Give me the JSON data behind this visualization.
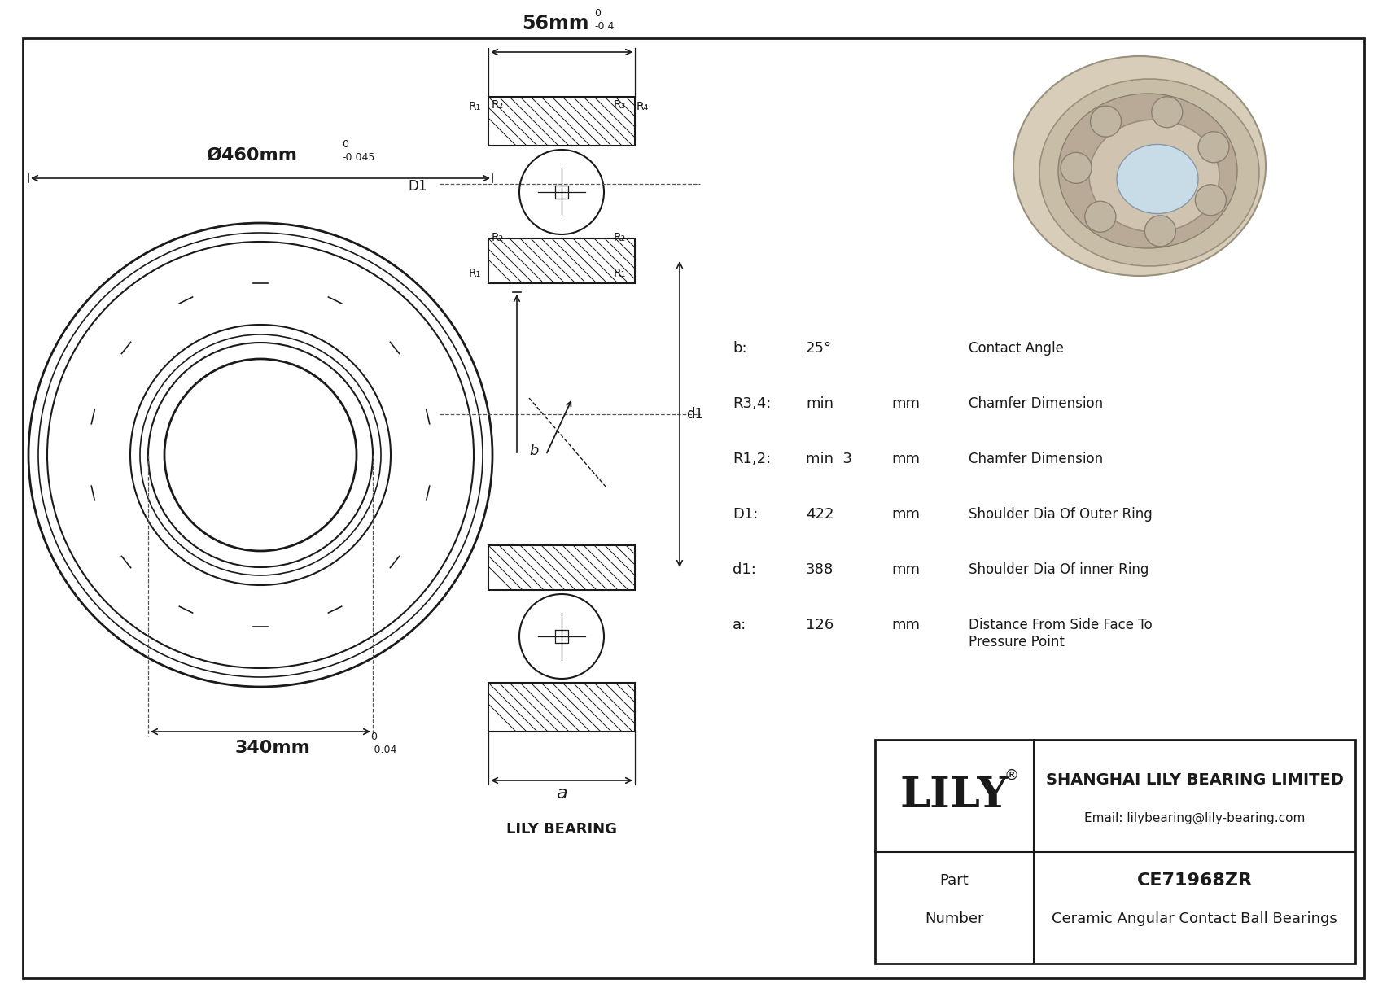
{
  "bg_color": "#ffffff",
  "line_color": "#1a1a1a",
  "dim_color": "#555555",
  "part_number": "CE71968ZR",
  "part_type": "Ceramic Angular Contact Ball Bearings",
  "company": "SHANGHAI LILY BEARING LIMITED",
  "email": "Email: lilybearing@lily-bearing.com",
  "brand": "LILY",
  "od_label": "Ø460mm",
  "od_tol": "-0.045",
  "od_tol_top": "0",
  "id_label": "340mm",
  "id_tol": "-0.04",
  "id_tol_top": "0",
  "width_label": "56mm",
  "width_tol": "-0.4",
  "width_tol_top": "0",
  "specs": [
    [
      "b:",
      "25°",
      "",
      "Contact Angle"
    ],
    [
      "R3,4:",
      "min",
      "mm",
      "Chamfer Dimension"
    ],
    [
      "R1,2:",
      "min  3",
      "mm",
      "Chamfer Dimension"
    ],
    [
      "D1:",
      "422",
      "mm",
      "Shoulder Dia Of Outer Ring"
    ],
    [
      "d1:",
      "388",
      "mm",
      "Shoulder Dia Of inner Ring"
    ],
    [
      "a:",
      "126",
      "mm",
      "Distance From Side Face To\nPressure Point"
    ]
  ],
  "spec_subscripts": [
    [
      "b:",
      "",
      "",
      ""
    ],
    [
      "R",
      "3,4",
      ":",
      ""
    ],
    [
      "R",
      "1,2",
      ":",
      ""
    ],
    [
      "D1:",
      "",
      "",
      ""
    ],
    [
      "d1:",
      "",
      "",
      ""
    ],
    [
      "a:",
      "",
      "",
      ""
    ]
  ]
}
